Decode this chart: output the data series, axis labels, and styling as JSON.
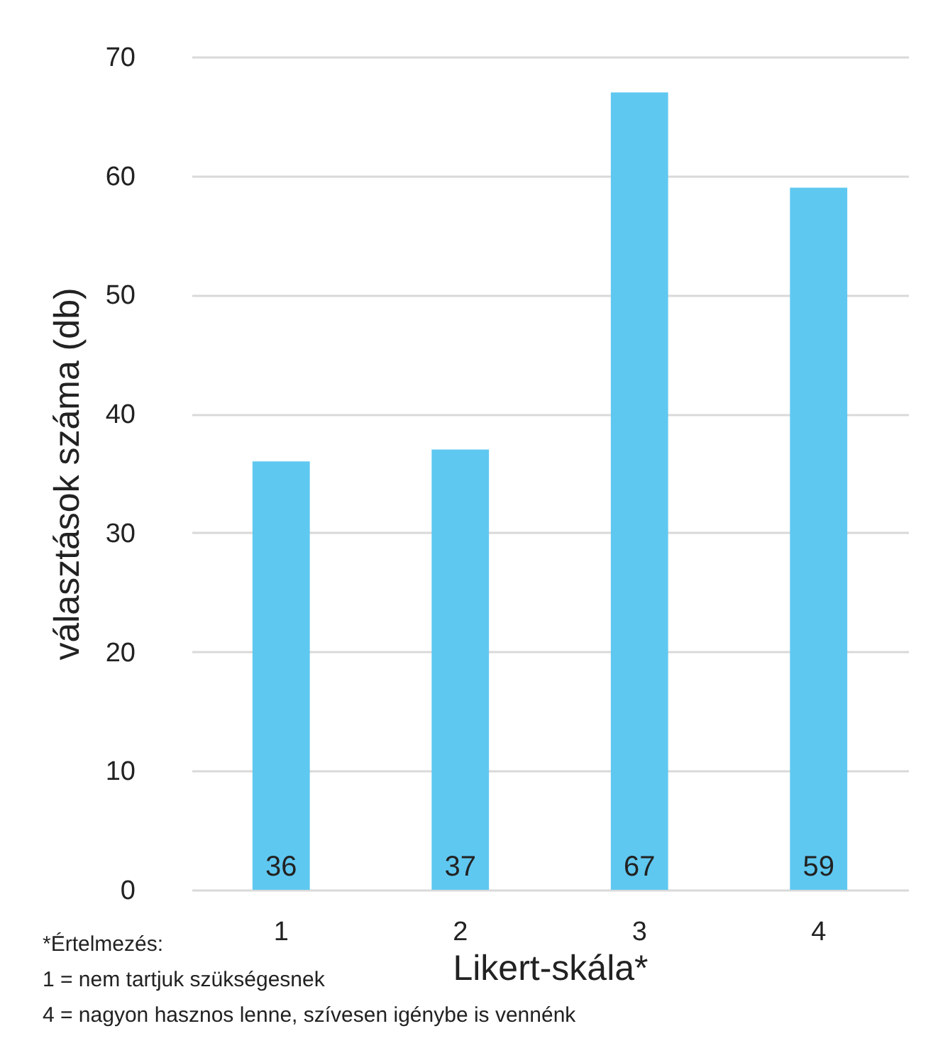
{
  "chart_data": {
    "type": "bar",
    "categories": [
      "1",
      "2",
      "3",
      "4"
    ],
    "values": [
      36,
      37,
      67,
      59
    ],
    "color": "#5fc8f0",
    "xlabel": "Likert-skála*",
    "ylabel": "választások száma (db)",
    "ylim": [
      0,
      70
    ],
    "yticks": [
      0,
      10,
      20,
      30,
      40,
      50,
      60,
      70
    ],
    "grid": "y",
    "data_labels": true,
    "annotations": [
      "*Értelmezés:",
      "1 = nem tartjuk szükségesnek",
      "4 = nagyon hasznos lenne, szívesen igénybe is vennénk"
    ]
  }
}
